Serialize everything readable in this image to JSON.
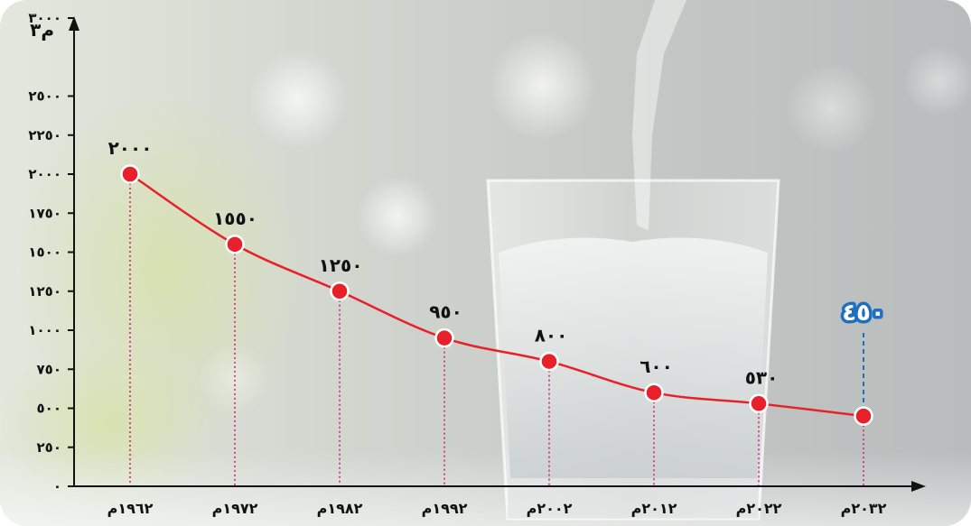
{
  "chart_data": {
    "type": "line",
    "title": "",
    "ylabel": "م٣",
    "xlabel": "",
    "ylim": [
      0,
      3000
    ],
    "yticks": [
      0,
      250,
      500,
      750,
      1000,
      1250,
      1500,
      1750,
      2000,
      2250,
      2500,
      3000
    ],
    "ytick_labels": [
      "٠",
      "٢٥٠",
      "٥٠٠",
      "٧٥٠",
      "١٠٠٠",
      "١٢٥٠",
      "١٥٠٠",
      "١٧٥٠",
      "٢٠٠٠",
      "٢٢٥٠",
      "٢٥٠٠",
      "٣٠٠٠"
    ],
    "categories": [
      "١٩٦٢م",
      "١٩٧٢م",
      "١٩٨٢م",
      "١٩٩٢م",
      "٢٠٠٢م",
      "٢٠١٢م",
      "٢٠٢٢م",
      "٢٠٣٢م"
    ],
    "values": [
      2000,
      1550,
      1250,
      950,
      800,
      600,
      530,
      450
    ],
    "data_labels": [
      "٢٠٠٠",
      "١٥٥٠",
      "١٢٥٠",
      "٩٥٠",
      "٨٠٠",
      "٦٠٠",
      "٥٣٠",
      "٤٥٠"
    ],
    "highlight_label_color": "#1e6fc0",
    "line_color": "#e8202a",
    "point_color": "#e8202a",
    "guide_color": "#d6227a",
    "grid": false,
    "legend": "none"
  },
  "background": {
    "description_icon": "glass-of-water-photo"
  }
}
